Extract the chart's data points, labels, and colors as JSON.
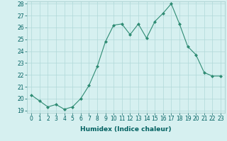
{
  "x": [
    0,
    1,
    2,
    3,
    4,
    5,
    6,
    7,
    8,
    9,
    10,
    11,
    12,
    13,
    14,
    15,
    16,
    17,
    18,
    19,
    20,
    21,
    22,
    23
  ],
  "y": [
    20.3,
    19.8,
    19.3,
    19.5,
    19.1,
    19.3,
    20.0,
    21.1,
    22.7,
    24.8,
    26.2,
    26.3,
    25.4,
    26.3,
    25.1,
    26.5,
    27.2,
    28.0,
    26.3,
    24.4,
    23.7,
    22.2,
    21.9,
    21.9
  ],
  "line_color": "#2e8b73",
  "marker": "D",
  "marker_size": 2,
  "bg_color": "#d6f0f0",
  "grid_color": "#b0d8d8",
  "xlabel": "Humidex (Indice chaleur)",
  "ylim": [
    19,
    28
  ],
  "xlim": [
    -0.5,
    23.5
  ],
  "yticks": [
    19,
    20,
    21,
    22,
    23,
    24,
    25,
    26,
    27,
    28
  ],
  "xticks": [
    0,
    1,
    2,
    3,
    4,
    5,
    6,
    7,
    8,
    9,
    10,
    11,
    12,
    13,
    14,
    15,
    16,
    17,
    18,
    19,
    20,
    21,
    22,
    23
  ],
  "tick_label_fontsize": 5.5,
  "xlabel_fontsize": 6.5,
  "spine_color": "#a0c8c8",
  "tick_color": "#006060"
}
